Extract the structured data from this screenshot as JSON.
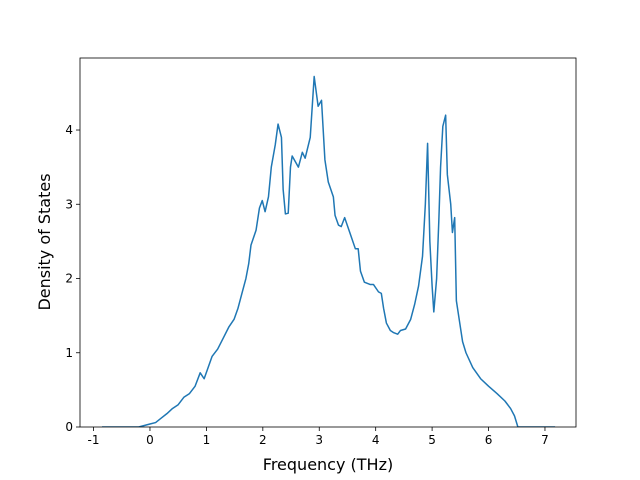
{
  "chart_data": {
    "type": "line",
    "x_label": "Frequency (THz)",
    "y_label": "Density of States",
    "xlim": [
      -1.24,
      7.55
    ],
    "ylim": [
      0,
      4.97
    ],
    "xticks": [
      -1,
      0,
      1,
      2,
      3,
      4,
      5,
      6,
      7
    ],
    "yticks": [
      0,
      1,
      2,
      3,
      4
    ],
    "grid": false,
    "series": [
      {
        "color": "#1f77b4",
        "x": [
          -0.85,
          -0.2,
          0.0,
          0.1,
          0.2,
          0.3,
          0.4,
          0.5,
          0.6,
          0.7,
          0.8,
          0.89,
          0.96,
          1.03,
          1.1,
          1.2,
          1.3,
          1.4,
          1.49,
          1.56,
          1.63,
          1.7,
          1.75,
          1.79,
          1.88,
          1.94,
          1.99,
          2.04,
          2.1,
          2.15,
          2.22,
          2.27,
          2.33,
          2.36,
          2.4,
          2.45,
          2.49,
          2.52,
          2.63,
          2.7,
          2.75,
          2.84,
          2.91,
          2.98,
          3.04,
          3.1,
          3.16,
          3.25,
          3.28,
          3.34,
          3.39,
          3.45,
          3.55,
          3.64,
          3.69,
          3.73,
          3.8,
          3.9,
          3.96,
          4.05,
          4.1,
          4.14,
          4.19,
          4.26,
          4.32,
          4.39,
          4.44,
          4.53,
          4.62,
          4.69,
          4.76,
          4.83,
          4.88,
          4.92,
          4.96,
          5.0,
          5.03,
          5.08,
          5.12,
          5.15,
          5.19,
          5.24,
          5.27,
          5.33,
          5.36,
          5.4,
          5.43,
          5.49,
          5.54,
          5.6,
          5.72,
          5.86,
          6.0,
          6.15,
          6.29,
          6.39,
          6.46,
          6.52,
          7.18
        ],
        "values": [
          0,
          0,
          0.04,
          0.06,
          0.12,
          0.18,
          0.25,
          0.3,
          0.4,
          0.45,
          0.55,
          0.73,
          0.65,
          0.8,
          0.95,
          1.05,
          1.2,
          1.35,
          1.45,
          1.6,
          1.8,
          2.0,
          2.2,
          2.45,
          2.65,
          2.95,
          3.05,
          2.9,
          3.1,
          3.5,
          3.8,
          4.08,
          3.9,
          3.2,
          2.87,
          2.88,
          3.5,
          3.65,
          3.5,
          3.7,
          3.62,
          3.9,
          4.72,
          4.32,
          4.4,
          3.6,
          3.3,
          3.1,
          2.85,
          2.72,
          2.7,
          2.82,
          2.6,
          2.4,
          2.4,
          2.1,
          1.95,
          1.92,
          1.92,
          1.82,
          1.8,
          1.6,
          1.4,
          1.3,
          1.27,
          1.25,
          1.3,
          1.32,
          1.45,
          1.65,
          1.9,
          2.3,
          3.0,
          3.82,
          2.5,
          1.9,
          1.55,
          2.0,
          2.8,
          3.5,
          4.05,
          4.2,
          3.4,
          3.0,
          2.62,
          2.82,
          1.7,
          1.4,
          1.15,
          1.0,
          0.8,
          0.65,
          0.55,
          0.45,
          0.35,
          0.25,
          0.15,
          0,
          0
        ]
      }
    ]
  }
}
